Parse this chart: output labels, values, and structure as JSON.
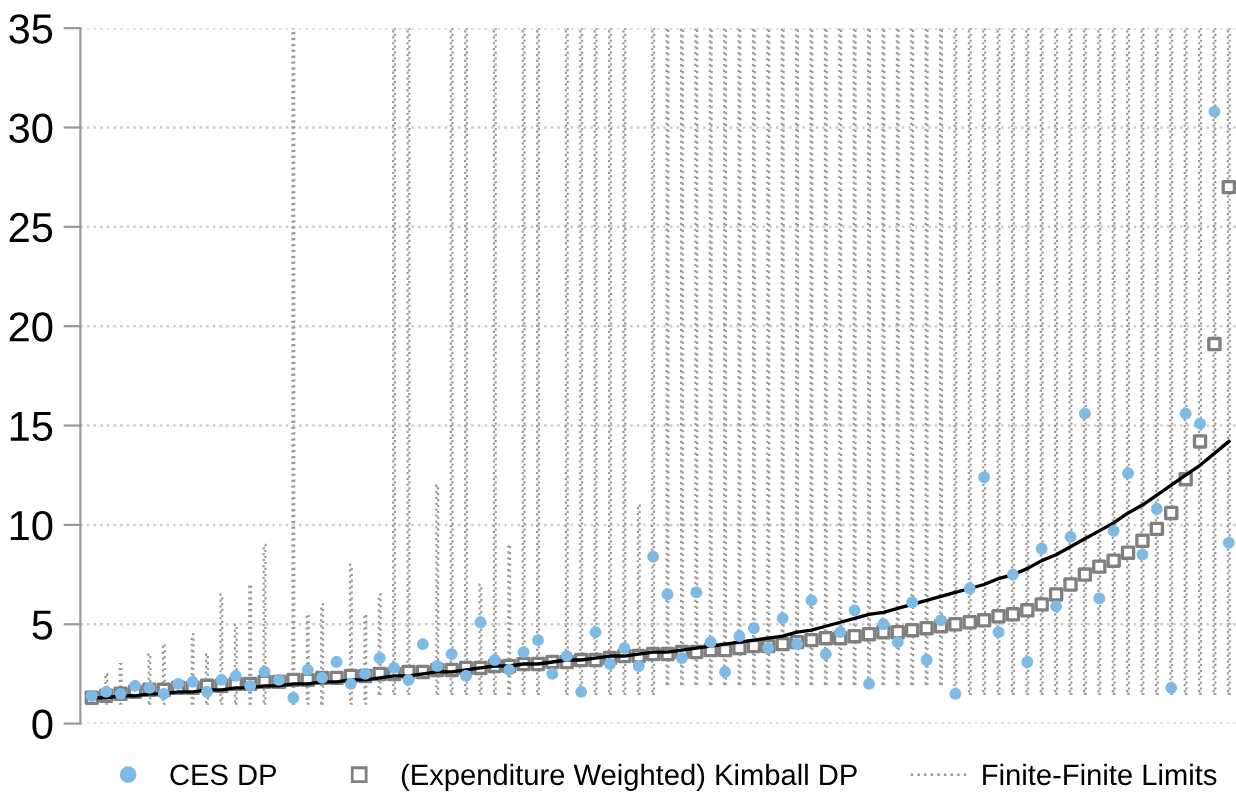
{
  "chart_data": {
    "type": "scatter",
    "categories": [
      null,
      null,
      null,
      null,
      null,
      null,
      null,
      null,
      null,
      null,
      null,
      null,
      null,
      null,
      null,
      null,
      null,
      null,
      null,
      null,
      null,
      null,
      null,
      null,
      null,
      null,
      null,
      null,
      null,
      null,
      null,
      null,
      null,
      null,
      null,
      null,
      null,
      null,
      null,
      null,
      null,
      null,
      null,
      null,
      null,
      null,
      null,
      null,
      null,
      null,
      null,
      null,
      null,
      null,
      null,
      null,
      null,
      null,
      null,
      null,
      null,
      null,
      null,
      null,
      null,
      null,
      null,
      null,
      null,
      null,
      null,
      null,
      null,
      null,
      null,
      null,
      null,
      null,
      null,
      null
    ],
    "series": [
      {
        "name": "Finite-Finite Limits",
        "type": "bar",
        "color": "#9a9a9a",
        "line_style": "dotted",
        "base": [
          null,
          1.0,
          1.0,
          null,
          1.0,
          1.0,
          null,
          1.0,
          1.0,
          1.0,
          1.0,
          1.0,
          1.0,
          null,
          1.0,
          1.0,
          1.0,
          null,
          1.0,
          1.0,
          1.5,
          1.5,
          1.5,
          null,
          1.5,
          1.5,
          1.5,
          1.5,
          1.5,
          1.5,
          1.5,
          1.5,
          null,
          1.5,
          1.5,
          1.5,
          1.5,
          1.5,
          1.5,
          1.5,
          2.0,
          2.0,
          2.0,
          2.0,
          2.0,
          2.0,
          2.0,
          2.0,
          2.0,
          2.0,
          2.0,
          2.0,
          2.0,
          2.0,
          2.0,
          2.0,
          2.0,
          2.0,
          2.0,
          2.0,
          1.5,
          1.5,
          1.5,
          1.5,
          1.5,
          1.5,
          1.5,
          1.5,
          1.5,
          1.5,
          1.5,
          1.5,
          1.5,
          1.5,
          1.5,
          1.5,
          1.5,
          1.5,
          1.5,
          1.5
        ],
        "values": [
          null,
          1.5,
          2,
          null,
          2.5,
          3,
          null,
          3.5,
          2.5,
          5.5,
          4,
          6,
          8,
          null,
          34,
          4.5,
          5,
          null,
          7,
          4.5,
          5,
          33.5,
          33.5,
          null,
          10.5,
          33.5,
          33.5,
          5.5,
          33.5,
          7.5,
          33.5,
          33.5,
          null,
          33.5,
          33.5,
          33.5,
          33.5,
          33.5,
          9.5,
          33.5,
          33,
          33,
          33,
          33,
          33,
          33,
          33,
          33,
          33,
          33,
          33,
          33,
          33,
          33,
          33,
          33,
          33,
          33,
          33,
          33,
          33.5,
          33.5,
          33.5,
          33.5,
          33.5,
          33.5,
          33.5,
          33.5,
          33.5,
          33.5,
          33.5,
          33.5,
          33.5,
          33.5,
          33.5,
          33.5,
          33.5,
          33.5,
          33.5,
          33.5
        ]
      },
      {
        "type": "line",
        "color": "#000000",
        "line_style": "solid",
        "values": [
          1.3,
          1.3,
          1.4,
          1.4,
          1.5,
          1.5,
          1.6,
          1.6,
          1.7,
          1.7,
          1.8,
          1.8,
          1.9,
          1.9,
          2.0,
          2.0,
          2.1,
          2.1,
          2.2,
          2.2,
          2.3,
          2.4,
          2.4,
          2.5,
          2.6,
          2.6,
          2.7,
          2.8,
          2.9,
          2.9,
          3.0,
          3.0,
          3.1,
          3.2,
          3.2,
          3.3,
          3.4,
          3.4,
          3.5,
          3.6,
          3.6,
          3.7,
          3.8,
          3.9,
          4.0,
          4.1,
          4.2,
          4.3,
          4.4,
          4.6,
          4.7,
          4.9,
          5.1,
          5.3,
          5.5,
          5.6,
          5.8,
          6.0,
          6.2,
          6.4,
          6.6,
          6.8,
          7.0,
          7.3,
          7.5,
          7.8,
          8.2,
          8.5,
          8.9,
          9.3,
          9.7,
          10.1,
          10.6,
          11.0,
          11.5,
          12.0,
          12.5,
          13.0,
          13.6,
          14.2
        ]
      },
      {
        "name": "(Expenditure Weighted) Kimball DP",
        "marker": "square",
        "color": "#808080",
        "values": [
          1.3,
          1.4,
          1.5,
          1.6,
          1.7,
          1.7,
          1.8,
          1.8,
          1.9,
          1.9,
          2.0,
          2.0,
          2.1,
          2.1,
          2.2,
          2.2,
          2.3,
          2.3,
          2.4,
          2.4,
          2.5,
          2.5,
          2.6,
          2.6,
          2.7,
          2.7,
          2.8,
          2.8,
          2.9,
          2.9,
          3.0,
          3.0,
          3.1,
          3.1,
          3.2,
          3.2,
          3.3,
          3.4,
          3.4,
          3.5,
          3.5,
          3.6,
          3.6,
          3.7,
          3.7,
          3.8,
          3.9,
          3.9,
          4.0,
          4.1,
          4.2,
          4.3,
          4.3,
          4.4,
          4.5,
          4.6,
          4.6,
          4.7,
          4.8,
          4.9,
          5.0,
          5.1,
          5.2,
          5.4,
          5.5,
          5.7,
          6.0,
          6.5,
          7.0,
          7.5,
          7.9,
          8.2,
          8.6,
          9.2,
          9.8,
          10.6,
          12.3,
          14.2,
          19.1,
          27.0
        ]
      },
      {
        "name": "CES DP",
        "marker": "circle",
        "color": "#7dbbe6",
        "values": [
          1.4,
          1.6,
          1.5,
          1.9,
          1.8,
          1.5,
          2.0,
          2.1,
          1.6,
          2.2,
          2.4,
          1.9,
          2.6,
          2.2,
          1.3,
          2.7,
          2.3,
          3.1,
          2.0,
          2.5,
          3.3,
          2.8,
          2.2,
          4.0,
          2.9,
          3.5,
          2.4,
          5.1,
          3.2,
          2.7,
          3.6,
          4.2,
          2.5,
          3.4,
          1.6,
          4.6,
          3.0,
          3.8,
          2.9,
          8.4,
          6.5,
          3.3,
          6.6,
          4.1,
          2.6,
          4.4,
          4.8,
          3.8,
          5.3,
          4.0,
          6.2,
          3.5,
          4.6,
          5.7,
          2.0,
          5.0,
          4.1,
          6.1,
          3.2,
          5.2,
          1.5,
          6.8,
          12.4,
          4.6,
          7.5,
          3.1,
          8.8,
          5.9,
          9.4,
          15.6,
          6.3,
          9.7,
          12.6,
          8.5,
          10.8,
          1.8,
          15.6,
          15.1,
          30.8,
          9.1
        ]
      }
    ],
    "ylim": [
      0,
      35
    ],
    "yticks": [
      0,
      5,
      10,
      15,
      20,
      25,
      30,
      35
    ],
    "grid": "y",
    "legend": "bottom",
    "tick_labels": "y"
  }
}
